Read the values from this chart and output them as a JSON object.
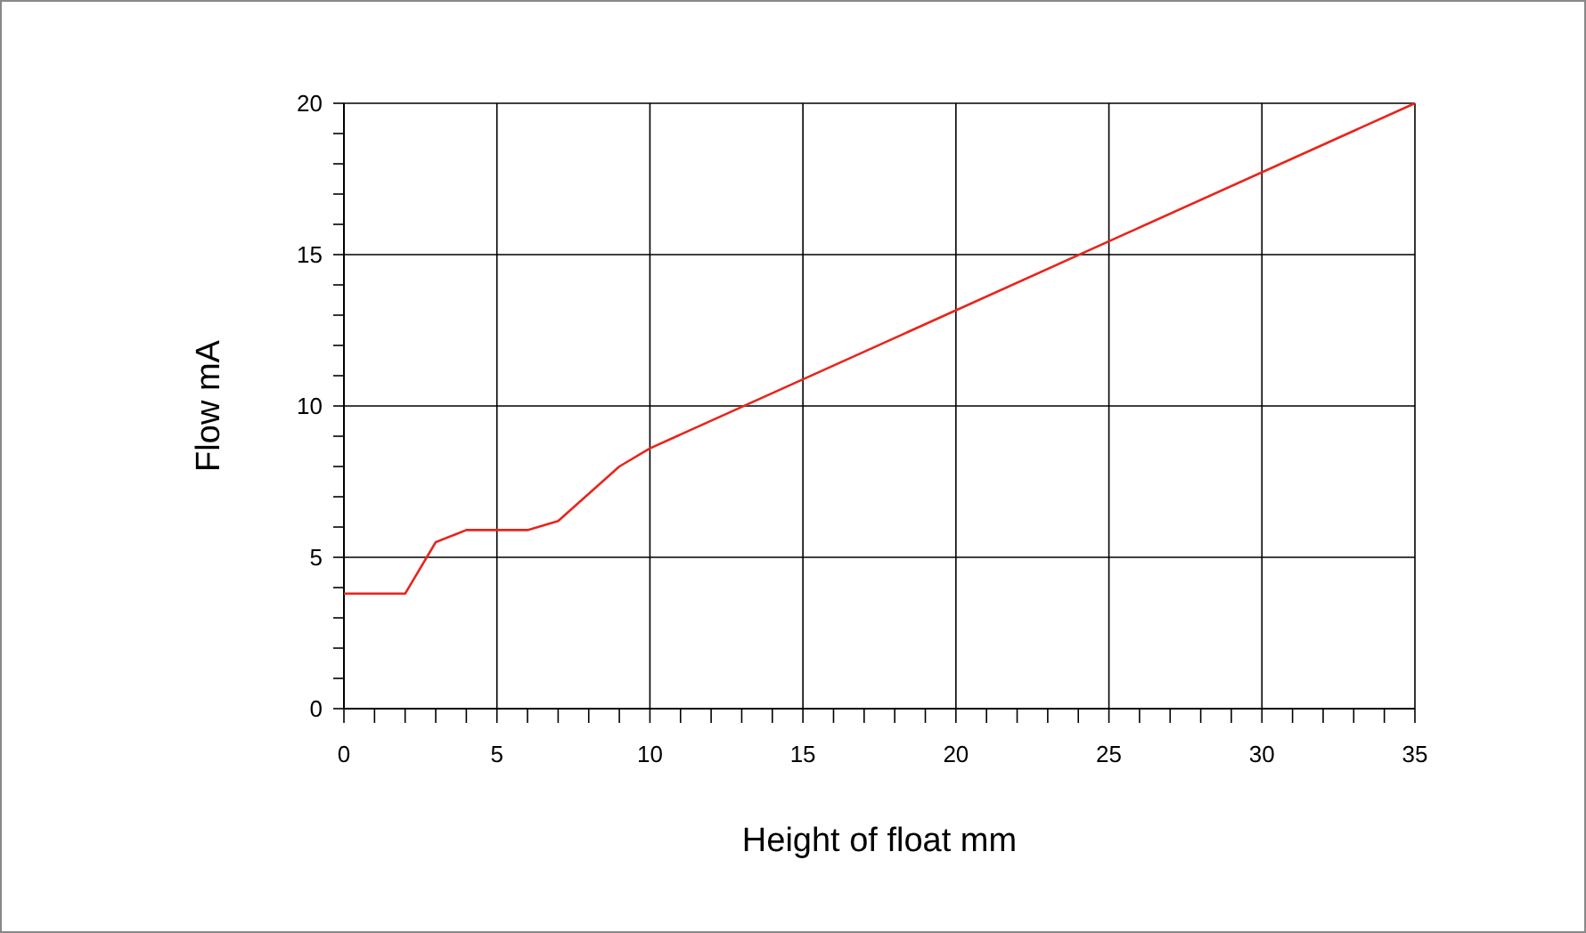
{
  "chart_data": {
    "type": "line",
    "xlabel": "Height of float mm",
    "ylabel": "Flow mA",
    "x": [
      0,
      2,
      3,
      4,
      6,
      7,
      9,
      10,
      35
    ],
    "series": [
      {
        "color": "#e8251c",
        "values": [
          3.8,
          3.8,
          5.5,
          5.9,
          5.9,
          6.2,
          8.0,
          8.6,
          20
        ]
      }
    ],
    "xlim": [
      0,
      35
    ],
    "ylim": [
      0,
      20
    ],
    "xticks": [
      0,
      5,
      10,
      15,
      20,
      25,
      30,
      35
    ],
    "yticks": [
      0,
      5,
      10,
      15,
      20
    ],
    "grid": true,
    "marker": "none",
    "line_style": "solid"
  }
}
